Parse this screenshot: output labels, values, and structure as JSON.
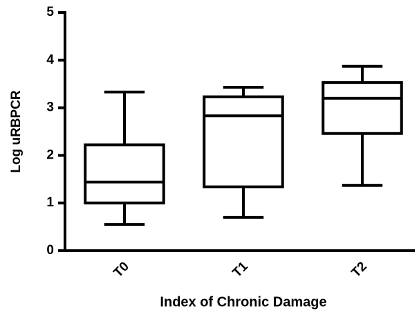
{
  "chart_data": {
    "type": "box",
    "y_label": "Log uRBPCR",
    "x_label": "Index of Chronic Damage",
    "categories": [
      "T0",
      "T1",
      "T2"
    ],
    "min": [
      0.55,
      0.7,
      1.37
    ],
    "q1": [
      1.0,
      1.34,
      2.46
    ],
    "median": [
      1.44,
      2.83,
      3.2
    ],
    "q3": [
      2.22,
      3.23,
      3.53
    ],
    "max": [
      3.33,
      3.43,
      3.87
    ],
    "color": "#000000",
    "ylim": [
      0,
      5
    ],
    "yticks": [
      0,
      1,
      2,
      3,
      4,
      5
    ],
    "grid": false
  }
}
